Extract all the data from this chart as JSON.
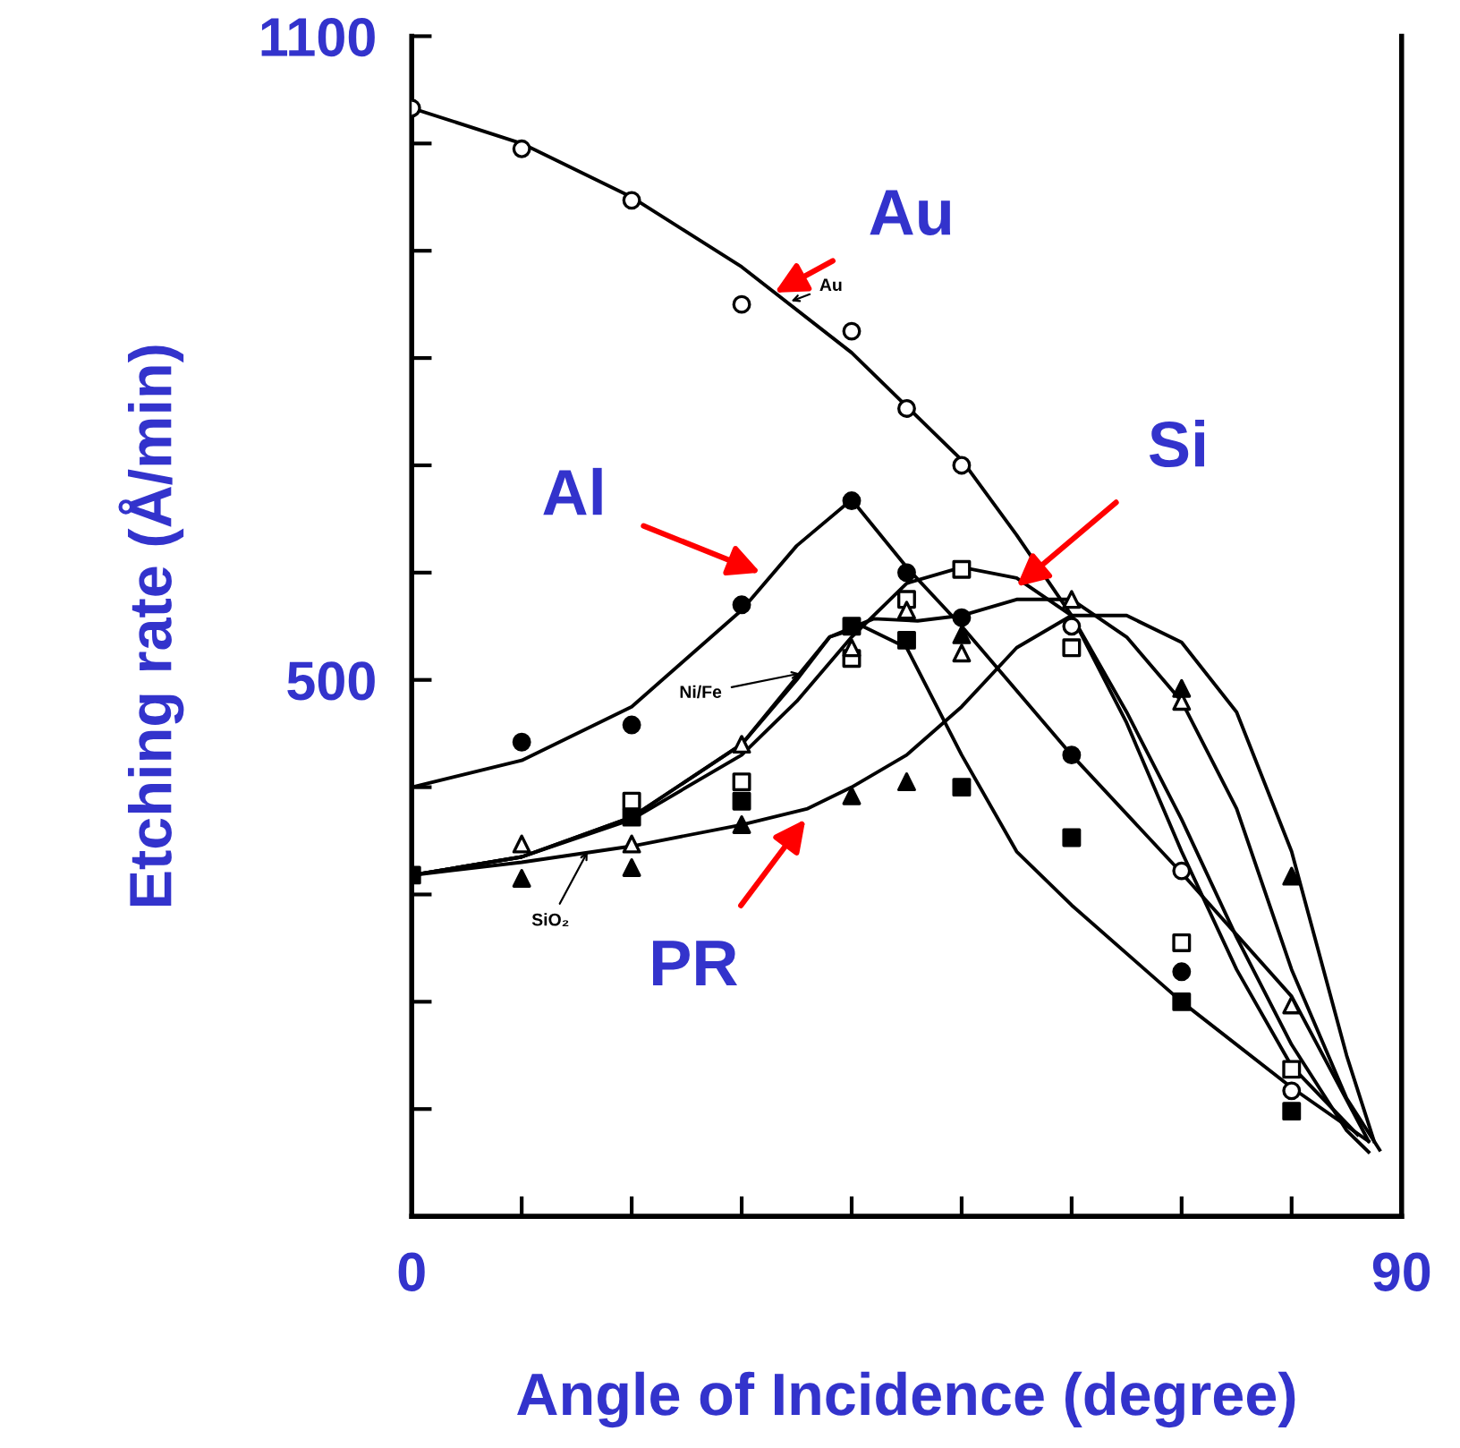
{
  "chart_data": {
    "type": "line",
    "xlabel": "Angle of Incidence (degree)",
    "ylabel": "Etching rate (Å/min)",
    "xlim": [
      0,
      90
    ],
    "ylim": [
      0,
      1100
    ],
    "xticks": [
      0,
      {
        "value": 10,
        "label": null
      },
      {
        "value": 20,
        "label": null
      },
      {
        "value": 30,
        "label": null
      },
      {
        "value": 40,
        "label": null
      },
      {
        "value": 50,
        "label": null
      },
      {
        "value": 60,
        "label": null
      },
      {
        "value": 70,
        "label": null
      },
      {
        "value": 80,
        "label": null
      },
      {
        "value": 90,
        "label": "90"
      }
    ],
    "yticks": [
      {
        "value": 0,
        "label": null
      },
      {
        "value": 100,
        "label": null
      },
      {
        "value": 200,
        "label": null
      },
      {
        "value": 300,
        "label": null
      },
      {
        "value": 400,
        "label": null
      },
      500,
      {
        "value": 600,
        "label": null
      },
      {
        "value": 700,
        "label": null
      },
      {
        "value": 800,
        "label": null
      },
      {
        "value": 900,
        "label": null
      },
      {
        "value": 1000,
        "label": null
      },
      1100
    ],
    "grid": false,
    "legend": false,
    "series": [
      {
        "marker": "none",
        "color": "#000000",
        "x": [
          0,
          10,
          20,
          30,
          40,
          50,
          55,
          60,
          65,
          70,
          75,
          80,
          85,
          87
        ],
        "values": [
          1033,
          1000,
          950,
          885,
          805,
          705,
          635,
          560,
          470,
          370,
          260,
          160,
          80,
          60
        ]
      },
      {
        "marker": "none",
        "color": "#000000",
        "x": [
          0,
          10,
          20,
          30,
          35,
          40,
          45,
          50,
          60,
          70,
          80,
          87
        ],
        "values": [
          400,
          425,
          475,
          565,
          625,
          668,
          605,
          550,
          430,
          320,
          205,
          70
        ]
      },
      {
        "marker": "none",
        "color": "#000000",
        "x": [
          0,
          10,
          20,
          30,
          35,
          40,
          45,
          50,
          55,
          60,
          65,
          70,
          75,
          80,
          86
        ],
        "values": [
          318,
          335,
          370,
          430,
          480,
          540,
          590,
          605,
          595,
          560,
          460,
          340,
          230,
          140,
          76
        ]
      },
      {
        "marker": "none",
        "color": "#000000",
        "x": [
          0,
          10,
          20,
          30,
          34,
          38,
          42,
          46,
          50,
          55,
          60,
          65,
          70,
          75,
          80,
          85,
          88
        ],
        "values": [
          318,
          335,
          372,
          440,
          490,
          540,
          557,
          555,
          560,
          575,
          575,
          540,
          480,
          380,
          230,
          110,
          62
        ]
      },
      {
        "marker": "none",
        "color": "#000000",
        "x": [
          0,
          10,
          20,
          30,
          35,
          38,
          41,
          45,
          50,
          55,
          60,
          70,
          80,
          87
        ],
        "values": [
          318,
          335,
          372,
          440,
          500,
          540,
          550,
          530,
          430,
          340,
          290,
          200,
          120,
          70
        ]
      },
      {
        "marker": "none",
        "color": "#000000",
        "x": [
          0,
          10,
          20,
          30,
          36,
          40,
          45,
          50,
          55,
          60,
          65,
          70,
          75,
          80,
          85,
          87.5
        ],
        "values": [
          318,
          330,
          345,
          365,
          380,
          400,
          430,
          475,
          530,
          560,
          560,
          535,
          470,
          340,
          150,
          70
        ]
      },
      {
        "type": "scatter",
        "marker": "circle",
        "color": "#ffffff",
        "x": [
          0,
          10,
          20,
          30,
          40,
          45,
          50,
          60,
          70,
          80
        ],
        "values": [
          1033,
          995,
          947,
          850,
          825,
          753,
          700,
          550,
          322,
          117
        ]
      },
      {
        "type": "scatter",
        "marker": "circle",
        "color": "#000000",
        "x": [
          10,
          20,
          30,
          40,
          45,
          50,
          60,
          70
        ],
        "values": [
          442,
          458,
          570,
          667,
          600,
          558,
          430,
          228
        ]
      },
      {
        "type": "scatter",
        "marker": "square",
        "color": "#ffffff",
        "x": [
          20,
          30,
          40,
          45,
          50,
          60,
          70,
          80
        ],
        "values": [
          387,
          405,
          520,
          575,
          603,
          530,
          255,
          137
        ]
      },
      {
        "type": "scatter",
        "marker": "triangle",
        "color": "#ffffff",
        "x": [
          10,
          20,
          30,
          40,
          45,
          50,
          60,
          70,
          80
        ],
        "values": [
          347,
          347,
          440,
          530,
          565,
          525,
          575,
          480,
          197
        ]
      },
      {
        "type": "scatter",
        "marker": "square",
        "color": "#000000",
        "x": [
          0,
          20,
          30,
          40,
          45,
          50,
          60,
          70,
          80
        ],
        "values": [
          318,
          372,
          387,
          550,
          537,
          400,
          353,
          200,
          98
        ]
      },
      {
        "type": "scatter",
        "marker": "triangle",
        "color": "#000000",
        "x": [
          10,
          20,
          30,
          40,
          45,
          50,
          70,
          80
        ],
        "values": [
          315,
          325,
          365,
          392,
          405,
          542,
          492,
          317
        ]
      }
    ],
    "annotations": [
      {
        "text": "Au",
        "x": 33,
        "y": 861
      },
      {
        "text": "Al",
        "x": 31.7,
        "y": 600
      },
      {
        "text": "Si",
        "x": 55,
        "y": 587
      },
      {
        "text": "PR",
        "x": 35.8,
        "y": 370
      },
      {
        "text": "Au",
        "x": 34.5,
        "y": 853
      },
      {
        "text": "Ni/Fe",
        "x": 35.3,
        "y": 506
      },
      {
        "text": "SiO₂",
        "x": 16,
        "y": 340
      }
    ]
  }
}
